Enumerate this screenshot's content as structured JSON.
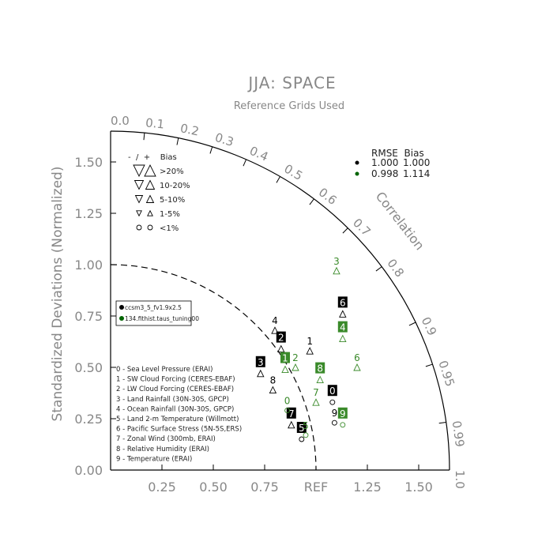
{
  "chart_data": {
    "type": "scatter",
    "title": "JJA: SPACE",
    "subtitle": "Reference Grids Used",
    "ylabel": "Standardized Deviations (Normalized)",
    "correlation_label": "Correlation",
    "ref_label": "REF",
    "xlim": [
      0,
      1.65
    ],
    "ylim": [
      0,
      1.65
    ],
    "x_ticks": [
      "0.25",
      "0.50",
      "0.75",
      "1.25",
      "1.50"
    ],
    "x_tick_values": [
      0.25,
      0.5,
      0.75,
      1.25,
      1.5
    ],
    "y_ticks": [
      "0.00",
      "0.25",
      "0.50",
      "0.75",
      "1.00",
      "1.25",
      "1.50"
    ],
    "y_tick_values": [
      0,
      0.25,
      0.5,
      0.75,
      1.0,
      1.25,
      1.5
    ],
    "corr_ticks": [
      "0.0",
      "0.1",
      "0.2",
      "0.3",
      "0.4",
      "0.5",
      "0.6",
      "0.7",
      "0.8",
      "0.9",
      "0.95",
      "0.99",
      "1.0"
    ],
    "corr_tick_values": [
      0.0,
      0.1,
      0.2,
      0.3,
      0.4,
      0.5,
      0.6,
      0.7,
      0.8,
      0.9,
      0.95,
      0.99,
      1.0
    ],
    "ref_arc_radius": 1.0,
    "bias_legend": {
      "header": "-  /  +    Bias",
      "rows": [
        ">20%",
        "10-20%",
        "5-10%",
        "1-5%",
        "<1%"
      ]
    },
    "rmse_legend": {
      "header": "RMSE  Bias",
      "rows": [
        {
          "color": "#000000",
          "rmse": "1.000",
          "bias": "1.000"
        },
        {
          "color": "#006400",
          "rmse": "0.998",
          "bias": "1.114"
        }
      ]
    },
    "series_legend": [
      {
        "color": "#000000",
        "name": "ccsm3_5_fv1.9x2.5"
      },
      {
        "color": "#006400",
        "name": "134.fithist.taus_tuning00"
      }
    ],
    "variables": [
      "0 - Sea Level Pressure (ERAI)",
      "1 - SW Cloud Forcing (CERES-EBAF)",
      "2 - LW Cloud Forcing (CERES-EBAF)",
      "3 - Land Rainfall (30N-30S, GPCP)",
      "4 - Ocean Rainfall (30N-30S, GPCP)",
      "5 - Land 2-m Temperature (Willmott)",
      "6 - Pacific Surface Stress (5N-5S,ERS)",
      "7 - Zonal Wind (300mb, ERAI)",
      "8 - Relative Humidity (ERAI)",
      "9 - Temperature (ERAI)"
    ],
    "series": [
      {
        "name": "ccsm3_5_fv1.9x2.5",
        "color": "#000000",
        "points": [
          {
            "id": "0",
            "x": 1.08,
            "y": 0.33,
            "marker": "circle",
            "boxed": true
          },
          {
            "id": "1",
            "x": 0.97,
            "y": 0.58,
            "marker": "up",
            "boxed": false
          },
          {
            "id": "2",
            "x": 0.83,
            "y": 0.59,
            "marker": "up",
            "boxed": true
          },
          {
            "id": "3",
            "x": 0.73,
            "y": 0.47,
            "marker": "up",
            "boxed": true
          },
          {
            "id": "4",
            "x": 0.8,
            "y": 0.68,
            "marker": "up",
            "boxed": false
          },
          {
            "id": "5",
            "x": 0.93,
            "y": 0.15,
            "marker": "circle",
            "boxed": true
          },
          {
            "id": "6",
            "x": 1.13,
            "y": 0.76,
            "marker": "up",
            "boxed": true
          },
          {
            "id": "7",
            "x": 0.88,
            "y": 0.22,
            "marker": "up",
            "boxed": true
          },
          {
            "id": "8",
            "x": 0.79,
            "y": 0.39,
            "marker": "up",
            "boxed": false
          },
          {
            "id": "9",
            "x": 1.09,
            "y": 0.23,
            "marker": "circle",
            "boxed": false
          }
        ]
      },
      {
        "name": "134.fithist.taus_tuning00",
        "color": "#3a8a2a",
        "points": [
          {
            "id": "0",
            "x": 0.86,
            "y": 0.29,
            "marker": "circle",
            "boxed": false
          },
          {
            "id": "1",
            "x": 0.85,
            "y": 0.49,
            "marker": "up",
            "boxed": true
          },
          {
            "id": "2",
            "x": 0.9,
            "y": 0.5,
            "marker": "up",
            "boxed": false
          },
          {
            "id": "3",
            "x": 1.1,
            "y": 0.97,
            "marker": "up",
            "boxed": false
          },
          {
            "id": "4",
            "x": 1.13,
            "y": 0.64,
            "marker": "up",
            "boxed": true
          },
          {
            "id": "5",
            "x": 0.95,
            "y": 0.17,
            "marker": "circle",
            "boxed": false
          },
          {
            "id": "6",
            "x": 1.2,
            "y": 0.5,
            "marker": "up",
            "boxed": false
          },
          {
            "id": "7",
            "x": 1.0,
            "y": 0.33,
            "marker": "up",
            "boxed": false
          },
          {
            "id": "8",
            "x": 1.02,
            "y": 0.44,
            "marker": "up",
            "boxed": true
          },
          {
            "id": "9",
            "x": 1.13,
            "y": 0.22,
            "marker": "circle",
            "boxed": true
          }
        ]
      }
    ]
  }
}
